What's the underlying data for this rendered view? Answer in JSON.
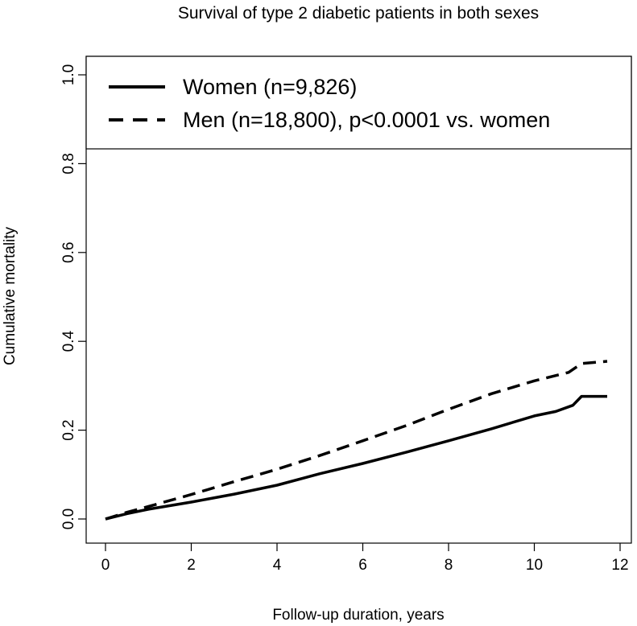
{
  "chart_data": {
    "type": "line",
    "title": "Survival of type 2 diabetic patients in both sexes",
    "xlabel": "Follow-up duration, years",
    "ylabel": "Cumulative mortality",
    "xlim": [
      0,
      12
    ],
    "ylim": [
      0,
      1.0
    ],
    "x_ticks": [
      "0",
      "2",
      "4",
      "6",
      "8",
      "10",
      "12"
    ],
    "y_ticks": [
      "0.0",
      "0.2",
      "0.4",
      "0.6",
      "0.8",
      "1.0"
    ],
    "grid": false,
    "legend_position": "top",
    "series": [
      {
        "name": "Women (n=9,826)",
        "style": "solid",
        "color": "#000000",
        "x": [
          0,
          0.5,
          1,
          2,
          3,
          4,
          5,
          6,
          7,
          8,
          9,
          10,
          10.5,
          10.9,
          11.1,
          11.7
        ],
        "y": [
          0,
          0.012,
          0.022,
          0.038,
          0.056,
          0.076,
          0.102,
          0.125,
          0.15,
          0.176,
          0.203,
          0.232,
          0.242,
          0.256,
          0.276,
          0.276
        ]
      },
      {
        "name": "Men (n=18,800), p<0.0001 vs. women",
        "style": "dashed",
        "color": "#000000",
        "x": [
          0,
          0.5,
          1,
          2,
          3,
          4,
          5,
          6,
          7,
          8,
          9,
          10,
          10.8,
          11.1,
          11.7
        ],
        "y": [
          0,
          0.015,
          0.028,
          0.055,
          0.084,
          0.112,
          0.143,
          0.176,
          0.21,
          0.247,
          0.282,
          0.311,
          0.33,
          0.35,
          0.355
        ]
      }
    ]
  }
}
